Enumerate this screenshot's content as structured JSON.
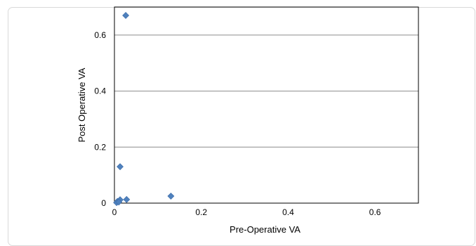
{
  "chart_data": {
    "type": "scatter",
    "title": "",
    "xlabel": "Pre-Operative VA",
    "ylabel": "Post Operative VA",
    "xlim": [
      0,
      0.7
    ],
    "ylim": [
      0,
      0.7
    ],
    "xticks": [
      0,
      0.2,
      0.4,
      0.6
    ],
    "yticks": [
      0,
      0.2,
      0.4,
      0.6
    ],
    "xtick_labels": [
      "0",
      "0.2",
      "0.4",
      "0.6"
    ],
    "ytick_labels": [
      "0",
      "0.2",
      "0.4",
      "0.6"
    ],
    "grid": "horizontal",
    "legend": "none",
    "marker": "diamond",
    "marker_color": "#4f81bd",
    "series": [
      {
        "x": [
          0.026,
          0.013,
          0.13,
          0.013,
          0.028,
          0.007,
          0.005,
          0.01
        ],
        "y": [
          0.67,
          0.13,
          0.025,
          0.012,
          0.013,
          0.006,
          0.002,
          0.004
        ]
      }
    ]
  }
}
